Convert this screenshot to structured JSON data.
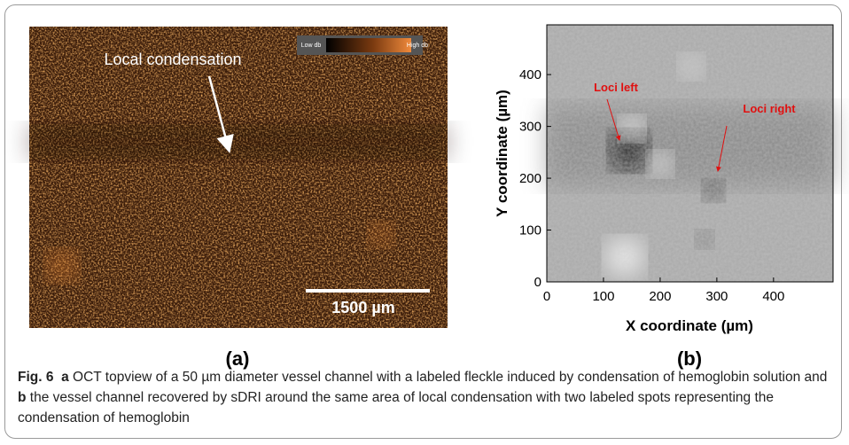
{
  "panel_a": {
    "annotation": "Local condensation",
    "colorbar_low": "Low db",
    "colorbar_high": "High db",
    "scale_bar": "1500 µm",
    "label": "(a)"
  },
  "panel_b": {
    "ylabel": "Y coordinate (µm)",
    "xlabel": "X coordinate (µm)",
    "xticks": [
      0,
      100,
      200,
      300,
      400
    ],
    "yticks": [
      0,
      100,
      200,
      300,
      400
    ],
    "xlim": [
      0,
      505
    ],
    "ylim": [
      0,
      496
    ],
    "annotations": [
      "Loci left",
      "Loci right"
    ],
    "label": "(b)"
  },
  "caption": {
    "figure": "Fig. 6",
    "a": "a",
    "text_a": "OCT topview of a 50 µm diameter vessel channel with a labeled fleckle induced by condensation of hemoglobin solution and",
    "b": "b",
    "text_b": "the vessel channel recovered by sDRI around the same area of local condensation with two labeled spots representing the condensation of hemoglobin"
  }
}
